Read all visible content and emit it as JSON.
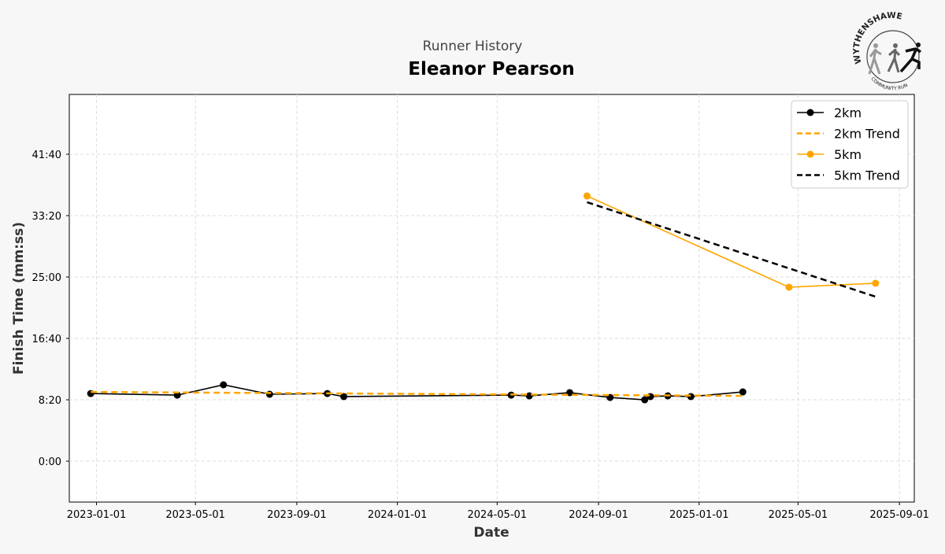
{
  "logo": {
    "text_top": "WYTHENSHAWE",
    "text_bottom": "COMMUNITY RUN"
  },
  "chart_data": {
    "type": "line",
    "subtitle": "Runner History",
    "title": "Eleanor Pearson",
    "xlabel": "Date",
    "ylabel": "Finish Time (mm:ss)",
    "xlim": [
      "2022-11-29",
      "2025-09-19"
    ],
    "ylim_seconds": [
      -333,
      2987
    ],
    "x_ticks": [
      "2023-01-01",
      "2023-05-01",
      "2023-09-01",
      "2024-01-01",
      "2024-05-01",
      "2024-09-01",
      "2025-01-01",
      "2025-05-01",
      "2025-09-01"
    ],
    "y_ticks": [
      {
        "s": 0,
        "label": "0:00"
      },
      {
        "s": 500,
        "label": "8:20"
      },
      {
        "s": 1000,
        "label": "16:40"
      },
      {
        "s": 1500,
        "label": "25:00"
      },
      {
        "s": 2000,
        "label": "33:20"
      },
      {
        "s": 2500,
        "label": "41:40"
      }
    ],
    "grid": true,
    "legend_position": "top-right",
    "series": [
      {
        "name": "2km",
        "style": "solid-marker",
        "color": "#000000",
        "points": [
          [
            "2022-12-25",
            551
          ],
          [
            "2023-04-09",
            538
          ],
          [
            "2023-06-04",
            622
          ],
          [
            "2023-07-30",
            545
          ],
          [
            "2023-10-08",
            551
          ],
          [
            "2023-10-28",
            526
          ],
          [
            "2024-05-18",
            538
          ],
          [
            "2024-06-09",
            532
          ],
          [
            "2024-07-28",
            558
          ],
          [
            "2024-09-15",
            519
          ],
          [
            "2024-10-27",
            500
          ],
          [
            "2024-11-03",
            526
          ],
          [
            "2024-11-24",
            532
          ],
          [
            "2024-12-22",
            526
          ],
          [
            "2025-02-23",
            564
          ]
        ]
      },
      {
        "name": "2km Trend",
        "style": "dashed",
        "color": "#FFA500",
        "points": [
          [
            "2022-12-25",
            564
          ],
          [
            "2025-02-23",
            532
          ]
        ]
      },
      {
        "name": "5km",
        "style": "solid-marker",
        "color": "#FFA500",
        "points": [
          [
            "2024-08-18",
            2160
          ],
          [
            "2025-04-20",
            1417
          ],
          [
            "2025-08-03",
            1449
          ]
        ]
      },
      {
        "name": "5km Trend",
        "style": "dashed",
        "color": "#000000",
        "points": [
          [
            "2024-08-18",
            2109
          ],
          [
            "2025-08-03",
            1340
          ]
        ]
      }
    ]
  }
}
